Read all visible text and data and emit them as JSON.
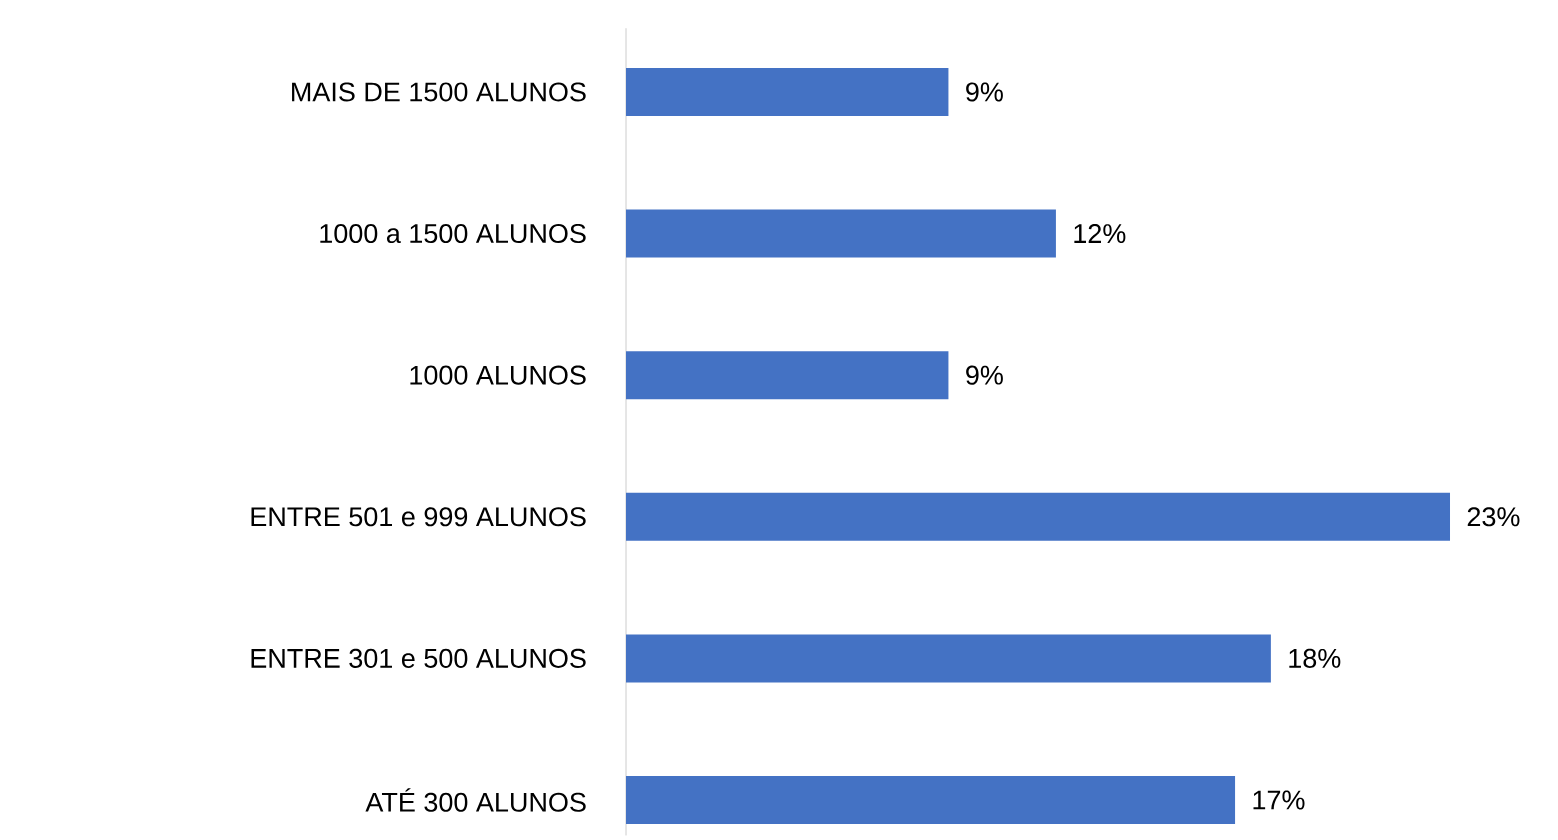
{
  "chart_data": {
    "type": "bar",
    "orientation": "horizontal",
    "categories": [
      "MAIS DE 1500 ALUNOS",
      "1000 a 1500 ALUNOS",
      "1000 ALUNOS",
      "ENTRE 501 e 999 ALUNOS",
      "ENTRE 301 e 500 ALUNOS",
      "ATÉ 300 ALUNOS"
    ],
    "values": [
      9,
      12,
      9,
      23,
      18,
      17
    ],
    "value_labels": [
      "9%",
      "12%",
      "9%",
      "23%",
      "18%",
      "17%"
    ],
    "color": "#4472c4"
  }
}
